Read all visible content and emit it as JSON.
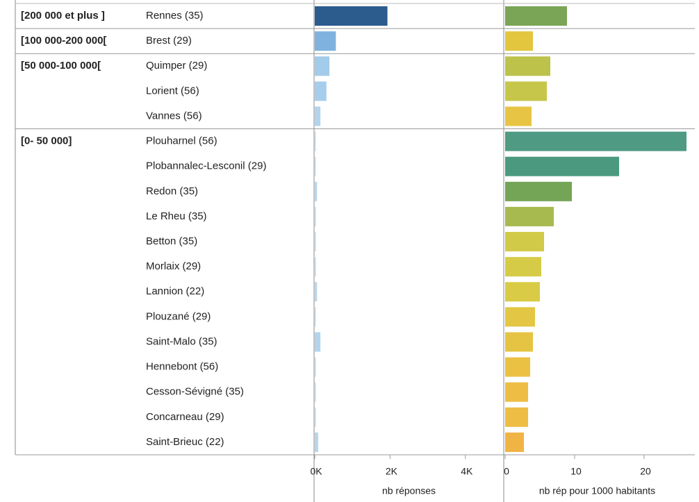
{
  "chart_data": {
    "type": "bar",
    "groups": [
      {
        "name": "[200 000 et plus ]",
        "categories": [
          "Rennes (35)"
        ]
      },
      {
        "name": "[100 000-200 000[",
        "categories": [
          "Brest (29)"
        ]
      },
      {
        "name": "[50 000-100 000[",
        "categories": [
          "Quimper (29)",
          "Lorient (56)",
          "Vannes (56)"
        ]
      },
      {
        "name": "[0- 50 000]",
        "categories": [
          "Plouharnel (56)",
          "Plobannalec-Lesconil (29)",
          "Redon (35)",
          "Le Rheu (35)",
          "Betton (35)",
          "Morlaix (29)",
          "Lannion (22)",
          "Plouzané (29)",
          "Saint-Malo (35)",
          "Hennebont (56)",
          "Cesson-Sévigné (35)",
          "Concarneau (29)",
          "Saint-Brieuc (22)"
        ]
      }
    ],
    "series": [
      {
        "name": "nb réponses",
        "values": [
          1930,
          560,
          390,
          310,
          150,
          20,
          20,
          60,
          30,
          30,
          30,
          60,
          20,
          150,
          30,
          30,
          30,
          90
        ],
        "colors": [
          "#2c5b8e",
          "#7fb2de",
          "#a3cbea",
          "#a6cdeb",
          "#b2d4ee",
          "#c4def2",
          "#c4def2",
          "#b8d7ef",
          "#c4def2",
          "#c4def2",
          "#c4def2",
          "#b8d7ef",
          "#c4def2",
          "#b2d4ee",
          "#c4def2",
          "#c4def2",
          "#c4def2",
          "#b5d5ee"
        ],
        "xlim": [
          0,
          5000
        ],
        "xticks": [
          {
            "value": 0,
            "label": "0K"
          },
          {
            "value": 2000,
            "label": "2K"
          },
          {
            "value": 4000,
            "label": "4K"
          }
        ]
      },
      {
        "name": "nb rép pour 1000 habitants",
        "values": [
          8.9,
          4.0,
          6.5,
          6.0,
          3.8,
          26.1,
          16.4,
          9.6,
          7.0,
          5.6,
          5.2,
          5.0,
          4.3,
          4.0,
          3.6,
          3.3,
          3.3,
          2.7
        ],
        "colors": [
          "#7aa456",
          "#e3c53e",
          "#bcc24a",
          "#c6c64a",
          "#e8c444",
          "#4f9a82",
          "#4b9a80",
          "#74a456",
          "#a7ba50",
          "#d1c948",
          "#d6cb46",
          "#d9cb45",
          "#e3c744",
          "#e6c443",
          "#ebc144",
          "#edbd44",
          "#edbd44",
          "#f0b444"
        ],
        "xlim": [
          0,
          26.5
        ],
        "xticks": [
          0,
          10,
          20
        ]
      }
    ]
  }
}
